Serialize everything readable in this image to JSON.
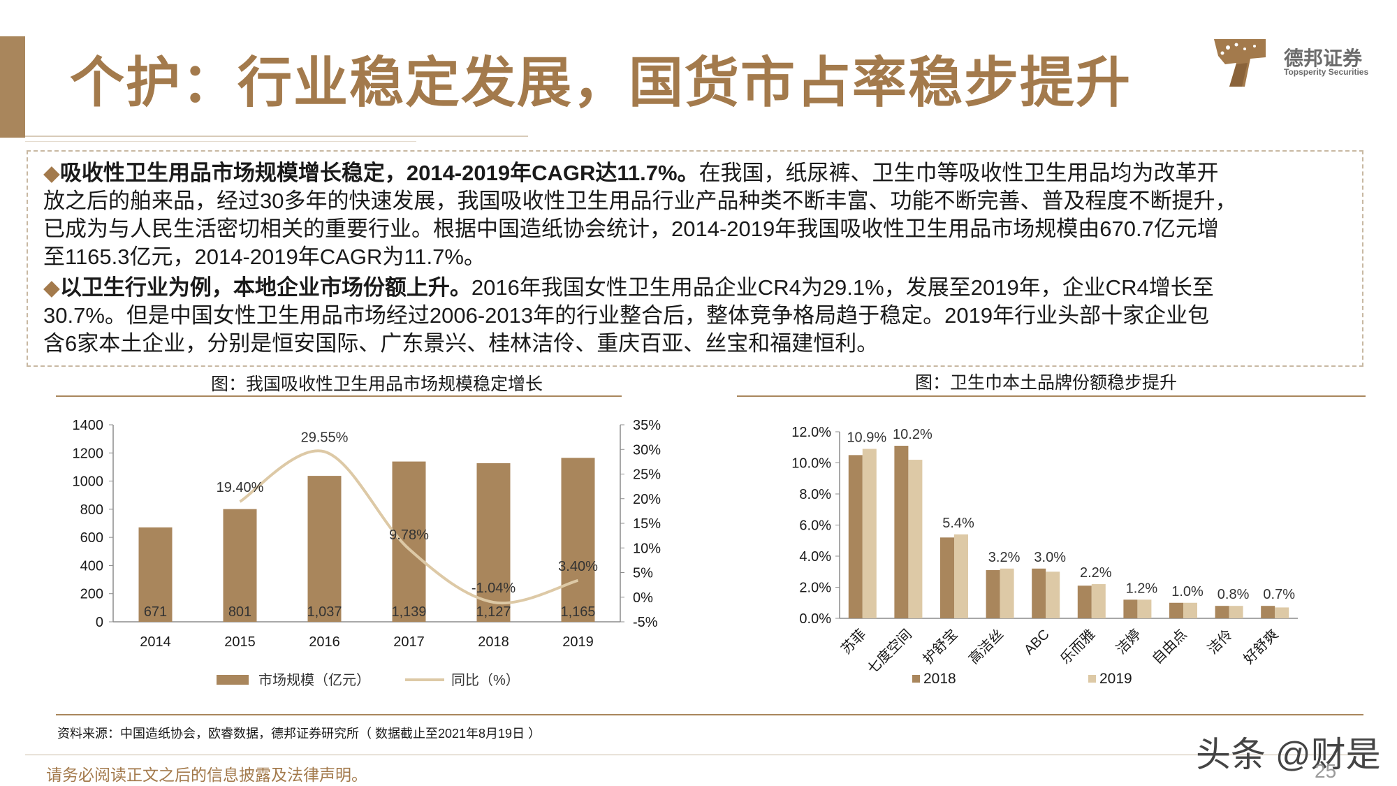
{
  "header": {
    "title": "个护：行业稳定发展，国货市占率稳步提升",
    "brand_cn": "德邦证券",
    "brand_en": "Topsperity Securities",
    "accent_color": "#a37a4c"
  },
  "bullets": [
    {
      "marker": "◆",
      "lead": "吸收性卫生用品市场规模增长稳定，2014-2019年CAGR达11.7%。",
      "body": "在我国，纸尿裤、卫生巾等吸收性卫生用品均为改革开\n放之后的舶来品，经过30多年的快速发展，我国吸收性卫生用品行业产品种类不断丰富、功能不断完善、普及程度不断提升，\n已成为与人民生活密切相关的重要行业。根据中国造纸协会统计，2014-2019年我国吸收性卫生用品市场规模由670.7亿元增\n至1165.3亿元，2014-2019年CAGR为11.7%。"
    },
    {
      "marker": "◆",
      "lead": "以卫生行业为例，本地企业市场份额上升。",
      "body": "2016年我国女性卫生用品企业CR4为29.1%，发展至2019年，企业CR4增长至\n30.7%。但是中国女性卫生用品市场经过2006-2013年的行业整合后，整体竞争格局趋于稳定。2019年行业头部十家企业包\n含6家本土企业，分别是恒安国际、广东景兴、桂林洁伶、重庆百亚、丝宝和福建恒利。"
    }
  ],
  "chart_data": [
    {
      "type": "bar+line",
      "title": "图：我国吸收性卫生用品市场规模稳定增长",
      "categories": [
        "2014",
        "2015",
        "2016",
        "2017",
        "2018",
        "2019"
      ],
      "bar_series": {
        "name": "市场规模（亿元）",
        "values": [
          671,
          801,
          1037,
          1139,
          1127,
          1165
        ],
        "labels": [
          "671",
          "801",
          "1,037",
          "1,139",
          "1,127",
          "1,165"
        ],
        "color": "#a9865c"
      },
      "line_series": {
        "name": "同比（%）",
        "values": [
          null,
          19.4,
          29.55,
          9.78,
          -1.04,
          3.4
        ],
        "labels": [
          "",
          "19.40%",
          "29.55%",
          "9.78%",
          "-1.04%",
          "3.40%"
        ],
        "color": "#ddc9a6"
      },
      "y_left": {
        "range": [
          0,
          1400
        ],
        "ticks": [
          "0",
          "200",
          "400",
          "600",
          "800",
          "1000",
          "1200",
          "1400"
        ]
      },
      "y_right": {
        "range": [
          -5,
          35
        ],
        "ticks": [
          "-5%",
          "0%",
          "5%",
          "10%",
          "15%",
          "20%",
          "25%",
          "30%",
          "35%"
        ]
      },
      "legend_position": "bottom"
    },
    {
      "type": "bar",
      "title": "图：卫生巾本土品牌份额稳步提升",
      "categories": [
        "苏菲",
        "七度空间",
        "护舒宝",
        "高洁丝",
        "ABC",
        "乐而雅",
        "洁婷",
        "自由点",
        "洁伶",
        "好舒爽"
      ],
      "series": [
        {
          "name": "2018",
          "values": [
            10.5,
            11.1,
            5.2,
            3.1,
            3.2,
            2.1,
            1.2,
            1.0,
            0.8,
            0.8
          ],
          "color": "#a9865c"
        },
        {
          "name": "2019",
          "values": [
            10.9,
            10.2,
            5.4,
            3.2,
            3.0,
            2.2,
            1.2,
            1.0,
            0.8,
            0.7
          ],
          "color": "#ddc9a6"
        }
      ],
      "data_labels": [
        "10.9%",
        "10.2%",
        "5.4%",
        "3.2%",
        "3.0%",
        "2.2%",
        "1.2%",
        "1.0%",
        "0.8%",
        "0.7%"
      ],
      "y_axis": {
        "range": [
          0,
          12
        ],
        "ticks": [
          "0.0%",
          "2.0%",
          "4.0%",
          "6.0%",
          "8.0%",
          "10.0%",
          "12.0%"
        ]
      },
      "legend_position": "bottom"
    }
  ],
  "footer": {
    "source": "资料来源：中国造纸协会，欧睿数据，德邦证券研究所（ 数据截止至2021年8月19日 ）",
    "disclaimer": "请务必阅读正文之后的信息披露及法律声明。",
    "page_number": "25",
    "watermark": "头条 @财是"
  }
}
